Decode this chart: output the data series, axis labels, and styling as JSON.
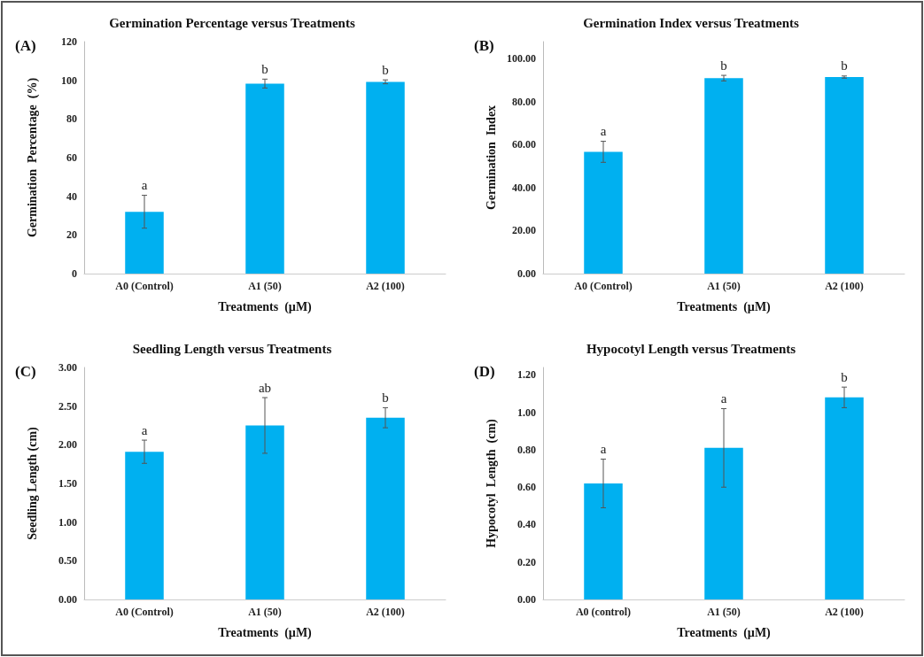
{
  "chart_data": [
    {
      "type": "bar",
      "title": "Germination Percentage versus Treatments",
      "xlabel": "Treatments  (µM)",
      "ylabel": "Germination  Percentage  (%)",
      "categories": [
        "A0 (Control)",
        "A1 (50)",
        "A2 (100)"
      ],
      "values": [
        32,
        98.3,
        99.2
      ],
      "errors": [
        8.5,
        2.3,
        1
      ],
      "color": "#00b0f0",
      "ylim": [
        0,
        120
      ],
      "yticks": [
        0,
        20,
        40,
        60,
        80,
        100,
        120
      ],
      "grid": false,
      "annotations": [
        "(A)",
        {
          "text": "a",
          "x": "A0 (Control)",
          "y": 40.5
        },
        {
          "text": "b",
          "x": "A1 (50)",
          "y": 100.6
        },
        {
          "text": "b",
          "x": "A2 (100)",
          "y": 100.2
        }
      ]
    },
    {
      "type": "bar",
      "title": "Germination Index versus Treatments",
      "xlabel": "Treatments  (µM)",
      "ylabel": "Germination  Index",
      "categories": [
        "A0 (Control)",
        "A1 (50)",
        "A2 (100)"
      ],
      "values": [
        56.7,
        91,
        91.5
      ],
      "errors": [
        4.9,
        1.3,
        0.5
      ],
      "color": "#00b0f0",
      "ylim": [
        0,
        108
      ],
      "yticks": [
        {
          "value": 0,
          "label": "0.00"
        },
        {
          "value": 20,
          "label": "20.00"
        },
        {
          "value": 40,
          "label": "40.00"
        },
        {
          "value": 60,
          "label": "60.00"
        },
        {
          "value": 80,
          "label": "80.00"
        },
        {
          "value": 100,
          "label": "100.00"
        }
      ],
      "grid": false,
      "annotations": [
        "(B)",
        {
          "text": "a",
          "x": "A0 (Control)",
          "y": 61.6
        },
        {
          "text": "b",
          "x": "A1 (50)",
          "y": 92.3
        },
        {
          "text": "b",
          "x": "A2 (100)",
          "y": 92
        }
      ]
    },
    {
      "type": "bar",
      "title": "Seedling Length versus Treatments",
      "xlabel": "Treatments  (µM)",
      "ylabel": "Seedling Length (cm)",
      "categories": [
        "A0 (Control)",
        "A1 (50)",
        "A2 (100)"
      ],
      "values": [
        1.91,
        2.25,
        2.35
      ],
      "errors": [
        0.15,
        0.36,
        0.13
      ],
      "color": "#00b0f0",
      "ylim": [
        0,
        3
      ],
      "yticks": [
        {
          "value": 0,
          "label": "0.00"
        },
        {
          "value": 0.5,
          "label": "0.50"
        },
        {
          "value": 1,
          "label": "1.00"
        },
        {
          "value": 1.5,
          "label": "1.50"
        },
        {
          "value": 2,
          "label": "2.00"
        },
        {
          "value": 2.5,
          "label": "2.50"
        },
        {
          "value": 3,
          "label": "3.00"
        }
      ],
      "grid": false,
      "annotations": [
        "(C)",
        {
          "text": "a",
          "x": "A0 (Control)",
          "y": 2.06
        },
        {
          "text": "ab",
          "x": "A1 (50)",
          "y": 2.61
        },
        {
          "text": "b",
          "x": "A2 (100)",
          "y": 2.48
        }
      ]
    },
    {
      "type": "bar",
      "title": "Hypocotyl Length versus Treatments",
      "xlabel": "Treatments  (µM)",
      "ylabel": "Hypocotyl  Length  (cm)",
      "categories": [
        "A0 (control)",
        "A1 (50)",
        "A2 (100)"
      ],
      "values": [
        0.62,
        0.81,
        1.08
      ],
      "errors": [
        0.13,
        0.21,
        0.055
      ],
      "color": "#00b0f0",
      "ylim": [
        0,
        1.24
      ],
      "yticks": [
        {
          "value": 0,
          "label": "0.00"
        },
        {
          "value": 0.2,
          "label": "0.20"
        },
        {
          "value": 0.4,
          "label": "0.40"
        },
        {
          "value": 0.6,
          "label": "0.60"
        },
        {
          "value": 0.8,
          "label": "0.80"
        },
        {
          "value": 1,
          "label": "1.00"
        },
        {
          "value": 1.2,
          "label": "1.20"
        }
      ],
      "grid": false,
      "annotations": [
        "(D)",
        {
          "text": "a",
          "x": "A0 (control)",
          "y": 0.75
        },
        {
          "text": "a",
          "x": "A1 (50)",
          "y": 1.02
        },
        {
          "text": "b",
          "x": "A2 (100)",
          "y": 1.135
        }
      ]
    }
  ]
}
